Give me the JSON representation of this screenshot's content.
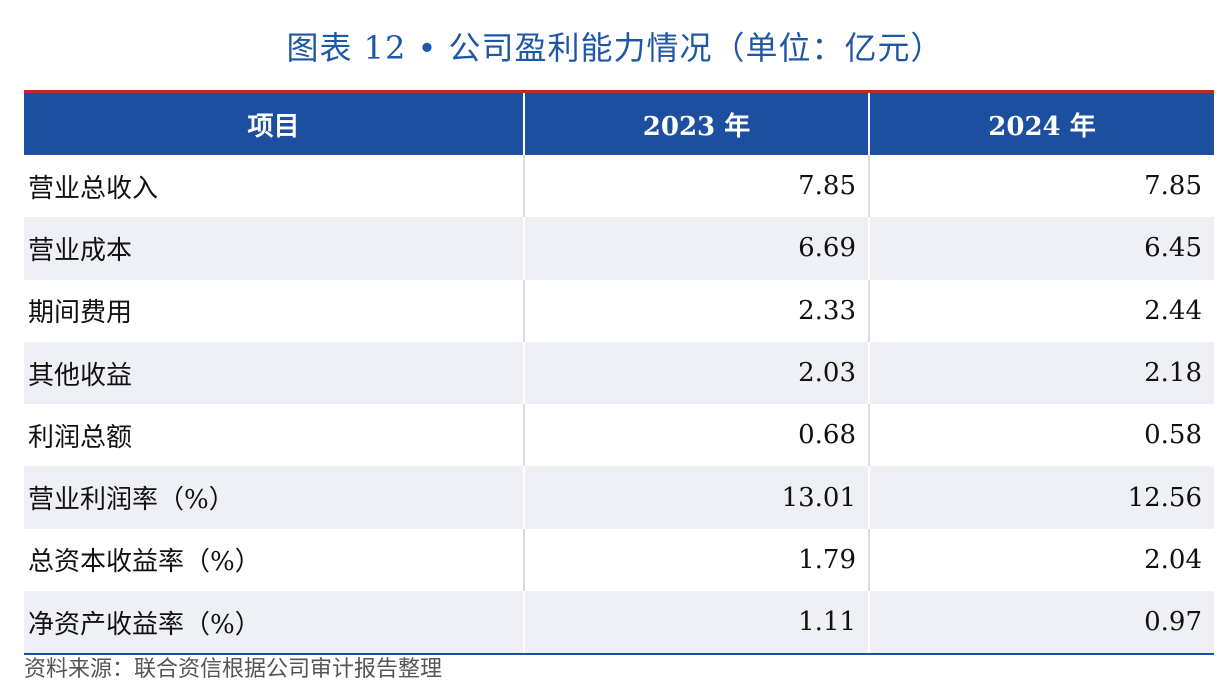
{
  "title": "图表 12 • 公司盈利能力情况（单位：亿元）",
  "table": {
    "headers": [
      "项目",
      "2023 年",
      "2024 年"
    ],
    "rows": [
      {
        "item": "营业总收入",
        "y2023": "7.85",
        "y2024": "7.85"
      },
      {
        "item": "营业成本",
        "y2023": "6.69",
        "y2024": "6.45"
      },
      {
        "item": "期间费用",
        "y2023": "2.33",
        "y2024": "2.44"
      },
      {
        "item": "其他收益",
        "y2023": "2.03",
        "y2024": "2.18"
      },
      {
        "item": "利润总额",
        "y2023": "0.68",
        "y2024": "0.58"
      },
      {
        "item": "营业利润率（%）",
        "y2023": "13.01",
        "y2024": "12.56"
      },
      {
        "item": "总资本收益率（%）",
        "y2023": "1.79",
        "y2024": "2.04"
      },
      {
        "item": "净资产收益率（%）",
        "y2023": "1.11",
        "y2024": "0.97"
      }
    ]
  },
  "source": "资料来源：联合资信根据公司审计报告整理",
  "colors": {
    "title": "#1f57a8",
    "header_bg": "#1d4fa0",
    "top_rule": "#c4252b",
    "stripe": "#eef0f5"
  }
}
